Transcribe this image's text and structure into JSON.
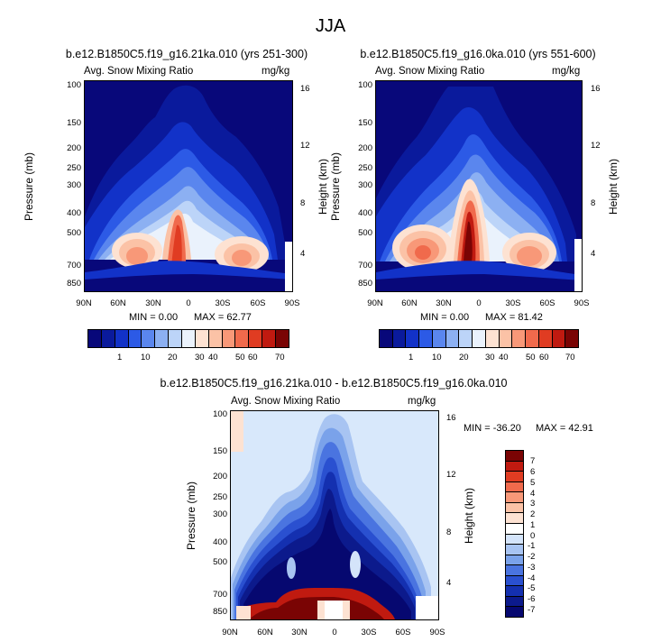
{
  "figure_title": "JJA",
  "chart_data": [
    {
      "type": "heatmap",
      "title": "b.e12.B1850C5.f19_g16.21ka.010 (yrs 251-300)",
      "variable": "Avg. Snow Mixing Ratio",
      "units": "mg/kg",
      "xlabel": "",
      "ylabel": "Pressure (mb)",
      "ylabel_right": "Height (km)",
      "x_ticks": [
        "90N",
        "60N",
        "30N",
        "0",
        "30S",
        "60S",
        "90S"
      ],
      "y_ticks": [
        "100",
        "150",
        "200",
        "250",
        "300",
        "400",
        "500",
        "700",
        "850"
      ],
      "y_ticks_right": [
        "16",
        "12",
        "8",
        "4"
      ],
      "min_label": "MIN =   0.00",
      "max_label": "MAX =  62.77",
      "min": 0.0,
      "max": 62.77
    },
    {
      "type": "heatmap",
      "title": "b.e12.B1850C5.f19_g16.0ka.010 (yrs 551-600)",
      "variable": "Avg. Snow Mixing Ratio",
      "units": "mg/kg",
      "xlabel": "",
      "ylabel": "Pressure (mb)",
      "ylabel_right": "Height (km)",
      "x_ticks": [
        "90N",
        "60N",
        "30N",
        "0",
        "30S",
        "60S",
        "90S"
      ],
      "y_ticks": [
        "100",
        "150",
        "200",
        "250",
        "300",
        "400",
        "500",
        "700",
        "850"
      ],
      "y_ticks_right": [
        "16",
        "12",
        "8",
        "4"
      ],
      "min_label": "MIN =   0.00",
      "max_label": "MAX =  81.42",
      "min": 0.0,
      "max": 81.42
    },
    {
      "type": "heatmap",
      "title": "b.e12.B1850C5.f19_g16.21ka.010 - b.e12.B1850C5.f19_g16.0ka.010",
      "variable": "Avg. Snow Mixing Ratio",
      "units": "mg/kg",
      "xlabel": "",
      "ylabel": "Pressure (mb)",
      "ylabel_right": "Height (km)",
      "x_ticks": [
        "90N",
        "60N",
        "30N",
        "0",
        "30S",
        "60S",
        "90S"
      ],
      "y_ticks": [
        "100",
        "150",
        "200",
        "250",
        "300",
        "400",
        "500",
        "700",
        "850"
      ],
      "y_ticks_right": [
        "16",
        "12",
        "8",
        "4"
      ],
      "min_label": "MIN = -36.20",
      "max_label": "MAX =  42.91",
      "min": -36.2,
      "max": 42.91
    }
  ],
  "colorbar_top": {
    "labels": [
      "1",
      "10",
      "20",
      "30",
      "40",
      "50",
      "60",
      "70"
    ],
    "colors": [
      "#08087a",
      "#0a1a9c",
      "#1232c8",
      "#2c5ae6",
      "#5a86ee",
      "#8cb0f2",
      "#bcd4f8",
      "#eaf2fc",
      "#fde2d2",
      "#fbc2a6",
      "#f89878",
      "#f06a4c",
      "#e03c22",
      "#c01a10",
      "#7a0404"
    ]
  },
  "colorbar_diff": {
    "labels": [
      "7",
      "6",
      "5",
      "4",
      "3",
      "2",
      "1",
      "0",
      "-1",
      "-2",
      "-3",
      "-4",
      "-5",
      "-6",
      "-7"
    ],
    "colors": [
      "#7a0404",
      "#c01a10",
      "#e03c22",
      "#f06a4c",
      "#f89878",
      "#fbc2a6",
      "#fde2d2",
      "#ffffff",
      "#d4e4fa",
      "#a8c4f2",
      "#7aa2ea",
      "#4a74e0",
      "#2a50d0",
      "#1430b0",
      "#0c1a8c",
      "#060870"
    ]
  }
}
